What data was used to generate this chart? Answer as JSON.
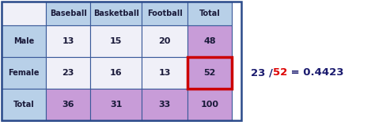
{
  "col_headers": [
    "",
    "Baseball",
    "Basketball",
    "Football",
    "Total"
  ],
  "rows": [
    {
      "label": "Male",
      "values": [
        13,
        15,
        20,
        48
      ]
    },
    {
      "label": "Female",
      "values": [
        23,
        16,
        13,
        52
      ]
    },
    {
      "label": "Total",
      "values": [
        36,
        31,
        33,
        100
      ]
    }
  ],
  "color_header_bg": "#b8d0e8",
  "color_label_bg": "#b8d0e8",
  "color_white_cell": "#f0f0f8",
  "color_purple_total": "#c89cd8",
  "color_highlight_border": "#cc0000",
  "color_text_dark": "#1a1a3a",
  "color_annotation_black": "#1a1a6e",
  "color_annotation_red": "#dd0000",
  "table_outer_border": "#2a4a8a",
  "inner_border": "#3a5a9a",
  "figsize": [
    4.74,
    1.54
  ],
  "dpi": 100
}
